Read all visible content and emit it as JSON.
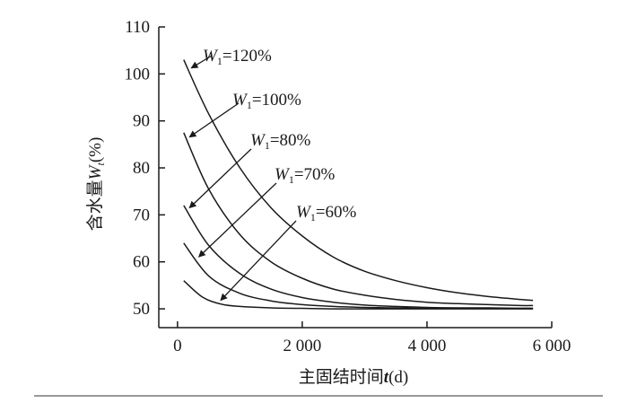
{
  "chart_data": {
    "type": "line",
    "xlabel": "主固结时间",
    "xlabel_var": "t",
    "xlabel_unit": "(d)",
    "ylabel": "含水量",
    "ylabel_var": "W",
    "ylabel_sub": "t",
    "ylabel_unit": "(%)",
    "xlim": [
      -300,
      6000
    ],
    "ylim": [
      46,
      110
    ],
    "xticks": [
      0,
      2000,
      4000,
      6000
    ],
    "xtick_labels": [
      "0",
      "2 000",
      "4 000",
      "6 000"
    ],
    "yticks": [
      50,
      60,
      70,
      80,
      90,
      100,
      110
    ],
    "ytick_labels": [
      "50",
      "60",
      "70",
      "80",
      "90",
      "100",
      "110"
    ],
    "grid": false,
    "legend": "inline-annotations",
    "series": [
      {
        "name": "W1=120%",
        "label_var": "W",
        "label_sub": "1",
        "label_value": "=120%",
        "x": [
          100,
          500,
          1000,
          1500,
          2000,
          2500,
          3000,
          3500,
          4000,
          4500,
          5000,
          5500,
          5700
        ],
        "y": [
          103,
          91.5,
          80,
          71.5,
          65.5,
          61,
          58,
          56,
          54.5,
          53.4,
          52.6,
          52,
          51.8
        ]
      },
      {
        "name": "W1=100%",
        "label_var": "W",
        "label_sub": "1",
        "label_value": "=100%",
        "x": [
          100,
          500,
          1000,
          1500,
          2000,
          2500,
          3000,
          3500,
          4000,
          4500,
          5000,
          5500,
          5700
        ],
        "y": [
          87.5,
          75.5,
          65.8,
          60,
          56.5,
          54.2,
          52.9,
          52,
          51.4,
          51.1,
          50.9,
          50.7,
          50.7
        ]
      },
      {
        "name": "W1=80%",
        "label_var": "W",
        "label_sub": "1",
        "label_value": "=80%",
        "x": [
          100,
          500,
          1000,
          1500,
          2000,
          2500,
          3000,
          3500,
          4000,
          4500,
          5000,
          5500,
          5700
        ],
        "y": [
          72,
          63.5,
          57.5,
          54.2,
          52.4,
          51.4,
          50.8,
          50.5,
          50.3,
          50.2,
          50.2,
          50.1,
          50.1
        ]
      },
      {
        "name": "W1=70%",
        "label_var": "W",
        "label_sub": "1",
        "label_value": "=70%",
        "x": [
          100,
          500,
          1000,
          1500,
          2000,
          2500,
          3000,
          3500,
          4000,
          4500,
          5000,
          5500,
          5700
        ],
        "y": [
          64,
          57,
          53.3,
          51.7,
          50.9,
          50.5,
          50.3,
          50.2,
          50.1,
          50.1,
          50.1,
          50.1,
          50.1
        ]
      },
      {
        "name": "W1=60%",
        "label_var": "W",
        "label_sub": "1",
        "label_value": "=60%",
        "x": [
          100,
          400,
          700,
          1000,
          1500,
          2000,
          2500,
          3000,
          4000,
          5000,
          5700
        ],
        "y": [
          56,
          52.5,
          51,
          50.5,
          50.2,
          50.1,
          50,
          50,
          50,
          50,
          50
        ]
      }
    ]
  }
}
